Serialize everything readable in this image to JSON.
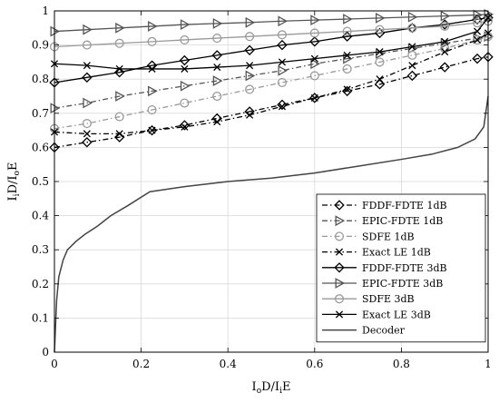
{
  "chart_data": {
    "type": "line",
    "xlabel_parts": [
      "I",
      "o",
      "D/I",
      "i",
      "E"
    ],
    "ylabel_parts": [
      "I",
      "i",
      "D/I",
      "o",
      "E"
    ],
    "xlim": [
      0,
      1
    ],
    "ylim": [
      0,
      1
    ],
    "xticks": [
      0,
      0.2,
      0.4,
      0.6,
      0.8,
      1
    ],
    "xtick_labels": [
      "0",
      "0.2",
      "0.4",
      "0.6",
      "0.8",
      "1"
    ],
    "yticks": [
      0,
      0.1,
      0.2,
      0.3,
      0.4,
      0.5,
      0.6,
      0.7,
      0.8,
      0.9,
      1
    ],
    "ytick_labels": [
      "0",
      "0.1",
      "0.2",
      "0.3",
      "0.4",
      "0.5",
      "0.6",
      "0.7",
      "0.8",
      "0.9",
      "1"
    ],
    "grid": true,
    "legend_position": "bottom-right",
    "series": [
      {
        "name": "FDDF-FDTE 1dB",
        "color": "#000000",
        "dash": "dashdot",
        "marker": "diamond",
        "x": [
          0,
          0.075,
          0.15,
          0.225,
          0.3,
          0.375,
          0.45,
          0.525,
          0.6,
          0.675,
          0.75,
          0.825,
          0.9,
          0.975,
          1
        ],
        "y": [
          0.6,
          0.615,
          0.63,
          0.65,
          0.665,
          0.685,
          0.705,
          0.725,
          0.745,
          0.765,
          0.785,
          0.81,
          0.835,
          0.86,
          0.865
        ]
      },
      {
        "name": "EPIC-FDTE 1dB",
        "color": "#555555",
        "dash": "dashdot",
        "marker": "triangle-right",
        "x": [
          0,
          0.075,
          0.15,
          0.225,
          0.3,
          0.375,
          0.45,
          0.525,
          0.6,
          0.675,
          0.75,
          0.825,
          0.9,
          0.975,
          1
        ],
        "y": [
          0.715,
          0.73,
          0.75,
          0.765,
          0.78,
          0.795,
          0.81,
          0.825,
          0.845,
          0.86,
          0.875,
          0.89,
          0.905,
          0.92,
          0.925
        ]
      },
      {
        "name": "SDFE 1dB",
        "color": "#9a9a9a",
        "dash": "dashdot",
        "marker": "circle",
        "x": [
          0,
          0.075,
          0.15,
          0.225,
          0.3,
          0.375,
          0.45,
          0.525,
          0.6,
          0.675,
          0.75,
          0.825,
          0.9,
          0.975,
          1
        ],
        "y": [
          0.655,
          0.67,
          0.69,
          0.71,
          0.73,
          0.75,
          0.77,
          0.79,
          0.81,
          0.83,
          0.85,
          0.87,
          0.89,
          0.915,
          0.925
        ]
      },
      {
        "name": "Exact LE 1dB",
        "color": "#000000",
        "dash": "dashdot",
        "marker": "x",
        "x": [
          0,
          0.075,
          0.15,
          0.225,
          0.3,
          0.375,
          0.45,
          0.525,
          0.6,
          0.675,
          0.75,
          0.825,
          0.9,
          0.975,
          1
        ],
        "y": [
          0.645,
          0.64,
          0.64,
          0.65,
          0.66,
          0.675,
          0.695,
          0.72,
          0.745,
          0.77,
          0.8,
          0.84,
          0.88,
          0.915,
          0.935
        ]
      },
      {
        "name": "FDDF-FDTE 3dB",
        "color": "#000000",
        "dash": "solid",
        "marker": "diamond",
        "x": [
          0,
          0.075,
          0.15,
          0.225,
          0.3,
          0.375,
          0.45,
          0.525,
          0.6,
          0.675,
          0.75,
          0.825,
          0.9,
          0.975,
          1
        ],
        "y": [
          0.79,
          0.805,
          0.82,
          0.84,
          0.855,
          0.87,
          0.885,
          0.9,
          0.91,
          0.925,
          0.935,
          0.95,
          0.96,
          0.975,
          0.98
        ]
      },
      {
        "name": "EPIC-FDTE 3dB",
        "color": "#555555",
        "dash": "solid",
        "marker": "triangle-right",
        "x": [
          0,
          0.075,
          0.15,
          0.225,
          0.3,
          0.375,
          0.45,
          0.525,
          0.6,
          0.675,
          0.75,
          0.825,
          0.9,
          0.975,
          1
        ],
        "y": [
          0.94,
          0.945,
          0.95,
          0.955,
          0.96,
          0.963,
          0.966,
          0.97,
          0.973,
          0.976,
          0.979,
          0.982,
          0.985,
          0.988,
          0.99
        ]
      },
      {
        "name": "SDFE 3dB",
        "color": "#9a9a9a",
        "dash": "solid",
        "marker": "circle",
        "x": [
          0,
          0.075,
          0.15,
          0.225,
          0.3,
          0.375,
          0.45,
          0.525,
          0.6,
          0.675,
          0.75,
          0.825,
          0.9,
          0.975,
          1
        ],
        "y": [
          0.895,
          0.9,
          0.905,
          0.91,
          0.915,
          0.92,
          0.925,
          0.93,
          0.935,
          0.94,
          0.945,
          0.95,
          0.955,
          0.965,
          0.97
        ]
      },
      {
        "name": "Exact LE 3dB",
        "color": "#000000",
        "dash": "solid",
        "marker": "x",
        "x": [
          0,
          0.075,
          0.15,
          0.225,
          0.3,
          0.375,
          0.45,
          0.525,
          0.6,
          0.675,
          0.75,
          0.825,
          0.9,
          0.975,
          1
        ],
        "y": [
          0.845,
          0.84,
          0.83,
          0.83,
          0.83,
          0.835,
          0.84,
          0.85,
          0.86,
          0.87,
          0.88,
          0.895,
          0.91,
          0.94,
          0.98
        ]
      },
      {
        "name": "Decoder",
        "color": "#444444",
        "dash": "solid",
        "marker": "none",
        "x": [
          0,
          0.005,
          0.01,
          0.02,
          0.03,
          0.05,
          0.07,
          0.1,
          0.13,
          0.17,
          0.22,
          0.3,
          0.4,
          0.5,
          0.6,
          0.7,
          0.8,
          0.87,
          0.93,
          0.97,
          0.99,
          1
        ],
        "y": [
          0,
          0.15,
          0.22,
          0.27,
          0.3,
          0.325,
          0.345,
          0.37,
          0.4,
          0.43,
          0.47,
          0.485,
          0.5,
          0.51,
          0.525,
          0.545,
          0.565,
          0.58,
          0.6,
          0.625,
          0.66,
          0.75
        ]
      }
    ]
  }
}
